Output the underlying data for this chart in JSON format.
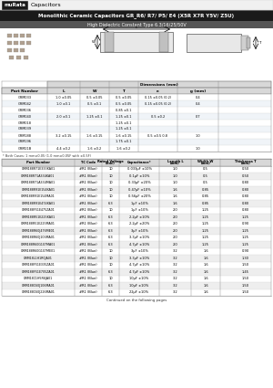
{
  "title_main": "Monolithic Ceramic Capacitors GR_R6/ R7/ P5/ E4 (X5R X7R Y5V/ Z5U)",
  "subtitle": "High Dielectric Constant Type 6.3/16/25/50V",
  "brand": "muRata",
  "brand_label": "Capacitors",
  "dim_table_rows": [
    [
      "GRM033",
      "1.0 ±0.05",
      "0.5 ±0.05",
      "0.5 ±0.05",
      "0.15 ±0.05 (0.2)",
      "0.4"
    ],
    [
      "GRM042",
      "1.0 ±0.1",
      "0.5 ±0.1",
      "0.5 ±0.05",
      "0.15 ±0.05 (0.2)",
      "0.4"
    ],
    [
      "GRM036",
      "",
      "",
      "0.85 ±0.1",
      "",
      ""
    ],
    [
      "GRM040",
      "2.0 ±0.1",
      "1.25 ±0.1",
      "1.25 ±0.1",
      "0.5 ±0.2",
      "0.7"
    ],
    [
      "GRM018",
      "",
      "",
      "1.25 ±0.1",
      "",
      ""
    ],
    [
      "GRM039",
      "",
      "",
      "1.25 ±0.1",
      "",
      ""
    ],
    [
      "GRM188",
      "3.2 ±0.15",
      "1.6 ±0.15",
      "1.6 ±0.15",
      "0.5 ±0.5 0.8",
      "1.0"
    ],
    [
      "GRM196",
      "",
      "",
      "1.75 ±0.1",
      "",
      ""
    ],
    [
      "GRM21B",
      "4.4 ±0.2",
      "1.6 ±0.2",
      "1.6 ±0.2",
      "",
      "1.0"
    ]
  ],
  "dim_note": "* Both Cases: 1 mm±0.05 (1.0 mm±0.05F with ±0.5F)",
  "main_table_rows": [
    [
      "GRM188R71E333KA01",
      "#R1 (Blue)",
      "10",
      "0.033μF ±10%",
      "1.0",
      "0.5",
      "0.50"
    ],
    [
      "GRM188R71A334KA01",
      "#R1 (Blue)",
      "10",
      "0.1μF ±10%",
      "1.0",
      "0.5",
      "0.50"
    ],
    [
      "GRM188R71A334MA01",
      "#R1 (Blue)",
      "10",
      "0.33μF ±20%",
      "1.0",
      "0.5",
      "0.80"
    ],
    [
      "GRM188R91E154KA01",
      "#R1 (Blue)",
      "10",
      "0.47μF ±10%",
      "1.6",
      "0.85",
      "0.80"
    ],
    [
      "GRM188R91E154MA01",
      "#R1 (Blue)",
      "10",
      "0.56μF ±20%",
      "1.6",
      "0.85",
      "0.80"
    ],
    [
      "GRM188R91E474KA01",
      "#R1 (Blue)",
      "6.3",
      "1μF ±10%",
      "1.6",
      "0.85",
      "0.80"
    ],
    [
      "GRM188F51E475ZA01",
      "#R1 (Blue)",
      "10",
      "1μF ±10%",
      "2.0",
      "1.25",
      "0.80"
    ],
    [
      "GRM188R51E225KA01",
      "#R1 (Blue)",
      "6.3",
      "2.2μF ±10%",
      "2.0",
      "1.25",
      "1.25"
    ],
    [
      "GRM188R51E225MA01",
      "#R1 (Blue)",
      "6.3",
      "2.2μF ±20%",
      "2.0",
      "1.25",
      "0.90"
    ],
    [
      "GRM188R60J476ME01",
      "#R1 (Blue)",
      "6.3",
      "3μF ±10%",
      "2.0",
      "1.25",
      "1.25"
    ],
    [
      "GRM188R60J106MA01",
      "#R1 (Blue)",
      "6.3",
      "3.3μF ±10%",
      "2.0",
      "1.25",
      "1.25"
    ],
    [
      "GRM188R60G107MA01",
      "#R1 (Blue)",
      "6.3",
      "4.7μF ±10%",
      "2.0",
      "1.25",
      "1.25"
    ],
    [
      "GRM188R60G107ME01",
      "#R1 (Blue)",
      "10",
      "3μF ±10%",
      "3.2",
      "1.6",
      "0.90"
    ],
    [
      "GRM18L1H1R0JA01",
      "#R1 (Blue)",
      "10",
      "3.3μF ±10%",
      "3.2",
      "1.6",
      "1.30"
    ],
    [
      "GRM188F51E335ZA01",
      "#R1 (Blue)",
      "10",
      "4.7μF ±10%",
      "3.2",
      "1.6",
      "1.50"
    ],
    [
      "GRM188F51E705ZA01",
      "#R1 (Blue)",
      "6.3",
      "4.7μF ±10%",
      "3.2",
      "1.6",
      "1.45"
    ],
    [
      "GRM18C1H5R6JA01",
      "#R1 (Blue)",
      "10",
      "10μF ±10%",
      "3.2",
      "1.6",
      "1.50"
    ],
    [
      "GRM188C60J106MA01",
      "#R1 (Blue)",
      "6.3",
      "10μF ±10%",
      "3.2",
      "1.6",
      "1.50"
    ],
    [
      "GRM188C60J226MA01",
      "#R1 (Blue)",
      "6.3",
      "22μF ±10%",
      "3.2",
      "1.6",
      "1.50"
    ]
  ],
  "footer": "Continued on the following pages",
  "bg_color": "#ffffff"
}
